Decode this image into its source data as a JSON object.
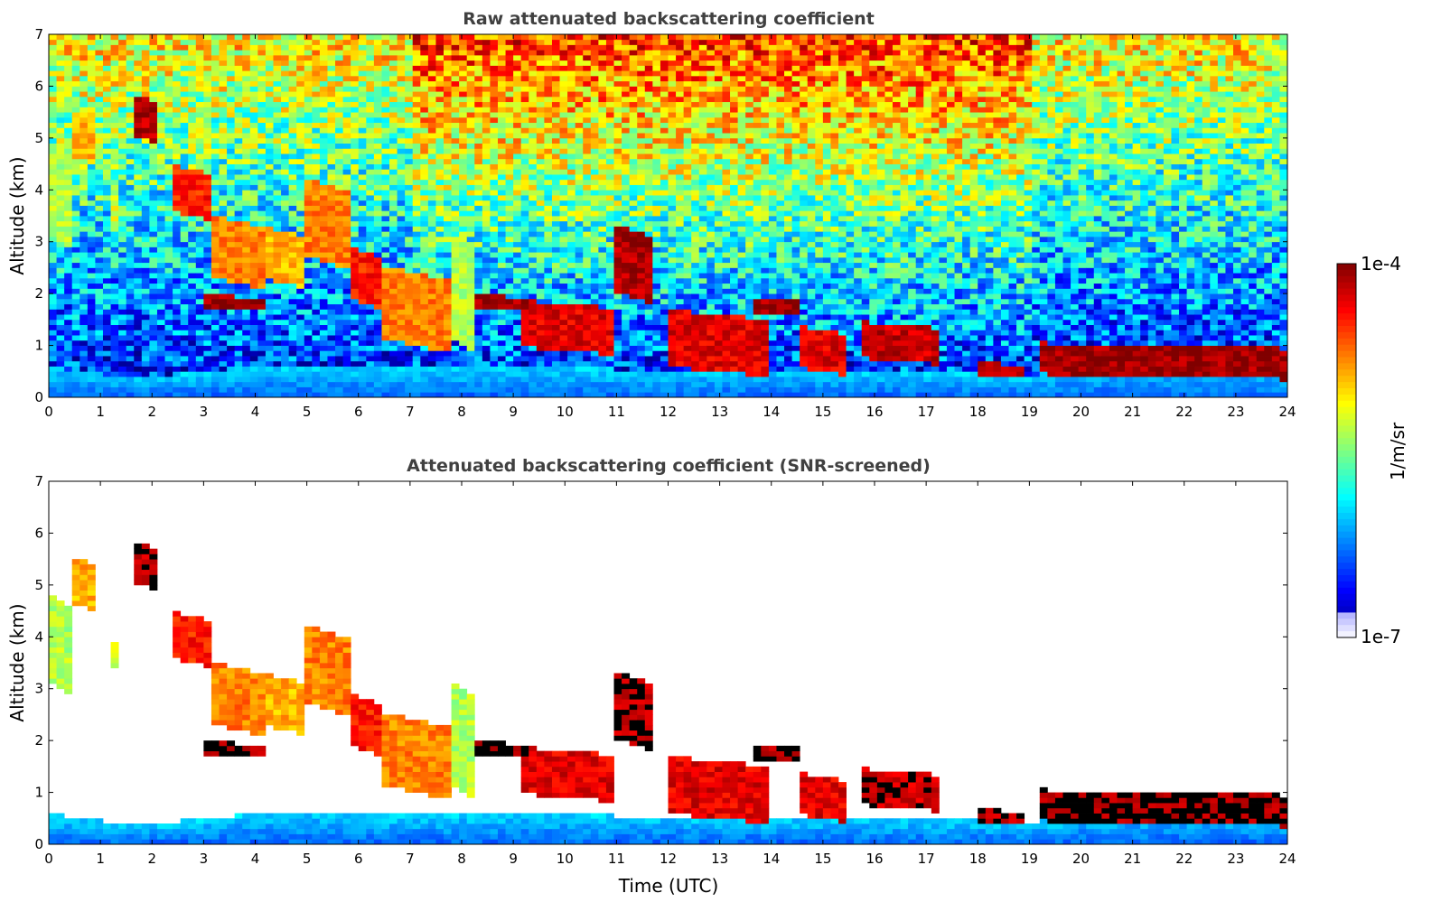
{
  "figure": {
    "xlabel": "Time (UTC)",
    "colorbar": {
      "label": "1/m/sr",
      "max_label": "1e-4",
      "min_label": "1e-7",
      "min_value": 1e-07,
      "max_value": 0.0001,
      "scale": "log",
      "colormap": "jet"
    }
  },
  "chart_data": [
    {
      "type": "heatmap",
      "title": "Raw attenuated backscattering coefficient",
      "xlabel": "",
      "ylabel": "Altitude (km)",
      "xlim": [
        0,
        24
      ],
      "ylim": [
        0,
        7
      ],
      "x_ticks": [
        "0",
        "1",
        "2",
        "3",
        "4",
        "5",
        "6",
        "7",
        "8",
        "9",
        "10",
        "11",
        "12",
        "13",
        "14",
        "15",
        "16",
        "17",
        "18",
        "19",
        "20",
        "21",
        "22",
        "23",
        "24"
      ],
      "y_ticks": [
        "0",
        "1",
        "2",
        "3",
        "4",
        "5",
        "6",
        "7"
      ],
      "colorbar_units": "1/m/sr",
      "boundary_layer_top_km": [
        [
          0,
          0.6
        ],
        [
          1,
          0.45
        ],
        [
          2,
          0.42
        ],
        [
          3,
          0.48
        ],
        [
          4,
          0.6
        ],
        [
          5,
          0.65
        ],
        [
          6,
          0.6
        ],
        [
          7,
          0.55
        ],
        [
          8,
          0.6
        ],
        [
          9,
          0.6
        ],
        [
          10,
          0.6
        ],
        [
          11,
          0.55
        ],
        [
          12,
          0.55
        ],
        [
          13,
          0.55
        ],
        [
          14,
          0.55
        ],
        [
          15,
          0.5
        ],
        [
          16,
          0.5
        ],
        [
          17,
          0.5
        ],
        [
          18,
          0.45
        ],
        [
          19,
          0.4
        ],
        [
          20,
          0.6
        ],
        [
          21,
          0.65
        ],
        [
          22,
          0.65
        ],
        [
          23,
          0.6
        ],
        [
          24,
          0.55
        ]
      ],
      "cloud_layers": [
        {
          "t0": 0.0,
          "t1": 0.4,
          "base": 3.0,
          "top": 4.7,
          "level": 0.55
        },
        {
          "t0": 0.4,
          "t1": 0.9,
          "base": 4.6,
          "top": 5.5,
          "level": 0.7
        },
        {
          "t0": 1.2,
          "t1": 1.4,
          "base": 3.4,
          "top": 3.9,
          "level": 0.6
        },
        {
          "t0": 1.65,
          "t1": 2.05,
          "base": 5.0,
          "top": 5.8,
          "level": 0.95
        },
        {
          "t0": 2.4,
          "t1": 3.1,
          "base": 3.5,
          "top": 4.4,
          "level": 0.85
        },
        {
          "t0": 3.1,
          "t1": 4.2,
          "base": 2.2,
          "top": 3.4,
          "level": 0.75
        },
        {
          "t0": 4.2,
          "t1": 5.0,
          "base": 2.2,
          "top": 3.2,
          "level": 0.7
        },
        {
          "t0": 3.0,
          "t1": 4.2,
          "base": 1.7,
          "top": 1.95,
          "level": 0.97
        },
        {
          "t0": 5.0,
          "t1": 5.8,
          "base": 2.6,
          "top": 4.1,
          "level": 0.75
        },
        {
          "t0": 5.8,
          "t1": 6.5,
          "base": 1.8,
          "top": 2.8,
          "level": 0.85
        },
        {
          "t0": 6.5,
          "t1": 7.8,
          "base": 1.0,
          "top": 2.4,
          "level": 0.75
        },
        {
          "t0": 7.8,
          "t1": 8.3,
          "base": 1.0,
          "top": 3.0,
          "level": 0.55
        },
        {
          "t0": 8.3,
          "t1": 9.3,
          "base": 1.7,
          "top": 1.95,
          "level": 0.97
        },
        {
          "t0": 9.2,
          "t1": 10.9,
          "base": 0.9,
          "top": 1.8,
          "level": 0.9
        },
        {
          "t0": 11.0,
          "t1": 11.7,
          "base": 1.9,
          "top": 3.2,
          "level": 0.95
        },
        {
          "t0": 12.0,
          "t1": 14.0,
          "base": 0.5,
          "top": 1.6,
          "level": 0.9
        },
        {
          "t0": 13.6,
          "t1": 14.6,
          "base": 1.6,
          "top": 1.9,
          "level": 0.97
        },
        {
          "t0": 14.6,
          "t1": 15.5,
          "base": 0.5,
          "top": 1.3,
          "level": 0.9
        },
        {
          "t0": 15.8,
          "t1": 17.2,
          "base": 0.7,
          "top": 1.4,
          "level": 0.93
        },
        {
          "t0": 18.0,
          "t1": 18.9,
          "base": 0.4,
          "top": 0.65,
          "level": 0.95
        },
        {
          "t0": 19.2,
          "t1": 24.0,
          "base": 0.4,
          "top": 1.0,
          "level": 0.97
        }
      ]
    },
    {
      "type": "heatmap",
      "title": "Attenuated backscattering coefficient (SNR-screened)",
      "xlabel": "Time (UTC)",
      "ylabel": "Altitude (km)",
      "xlim": [
        0,
        24
      ],
      "ylim": [
        0,
        7
      ],
      "x_ticks": [
        "0",
        "1",
        "2",
        "3",
        "4",
        "5",
        "6",
        "7",
        "8",
        "9",
        "10",
        "11",
        "12",
        "13",
        "14",
        "15",
        "16",
        "17",
        "18",
        "19",
        "20",
        "21",
        "22",
        "23",
        "24"
      ],
      "y_ticks": [
        "0",
        "1",
        "2",
        "3",
        "4",
        "5",
        "6",
        "7"
      ],
      "colorbar_units": "1/m/sr",
      "screened_background": "white",
      "saturated_color": "#000000"
    }
  ]
}
